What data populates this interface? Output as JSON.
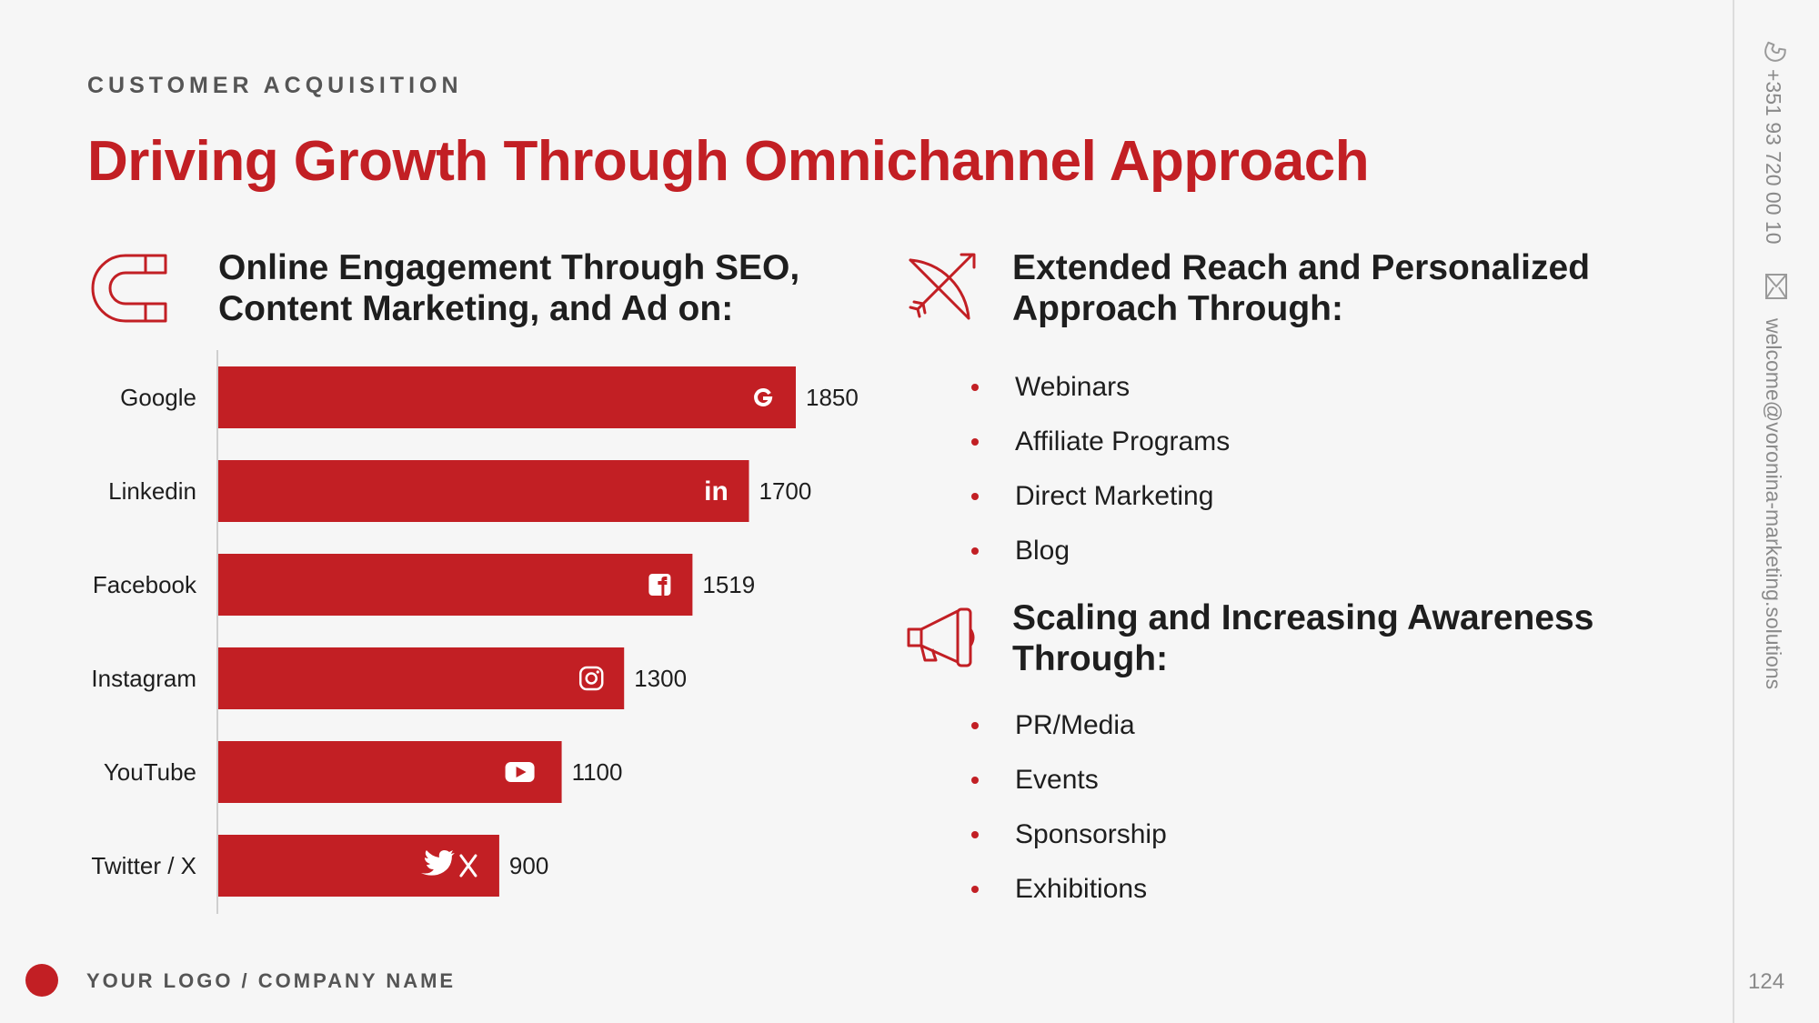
{
  "header": {
    "eyebrow": "CUSTOMER ACQUISITION",
    "title": "Driving Growth Through Omnichannel Approach"
  },
  "left_section": {
    "icon": "magnet-icon",
    "heading_line1": "Online Engagement Through SEO,",
    "heading_line2": "Content Marketing, and Ad on:"
  },
  "chart_data": {
    "type": "bar",
    "orientation": "horizontal",
    "categories": [
      "Google",
      "Linkedin",
      "Facebook",
      "Instagram",
      "YouTube",
      "Twitter / X"
    ],
    "values": [
      1850,
      1700,
      1519,
      1300,
      1100,
      900
    ],
    "bar_icons": [
      "google-icon",
      "linkedin-icon",
      "facebook-icon",
      "instagram-icon",
      "youtube-icon",
      "twitter-x-icon"
    ],
    "title": "",
    "xlabel": "",
    "ylabel": "",
    "xlim": [
      0,
      1850
    ],
    "grid": false,
    "bar_color": "#c21f24"
  },
  "reach_section": {
    "icon": "bow-arrow-icon",
    "heading_line1": "Extended Reach and Personalized",
    "heading_line2": "Approach Through:",
    "items": [
      "Webinars",
      "Affiliate Programs",
      "Direct Marketing",
      "Blog"
    ]
  },
  "awareness_section": {
    "icon": "megaphone-icon",
    "heading_line1": "Scaling and Increasing Awareness",
    "heading_line2": "Through:",
    "items": [
      "PR/Media",
      "Events",
      "Sponsorship",
      "Exhibitions"
    ]
  },
  "sidebar": {
    "phone_icon": "phone-icon",
    "phone": "+351 93 720 00 10",
    "mail_icon": "mail-icon",
    "email": "welcome@voronina-marketing.solutions"
  },
  "footer": {
    "company": "YOUR LOGO / COMPANY NAME",
    "page_number": "124"
  },
  "colors": {
    "accent": "#c21f24",
    "text": "#1e1e1e",
    "muted": "#8a8a8a",
    "background": "#f6f6f6"
  }
}
